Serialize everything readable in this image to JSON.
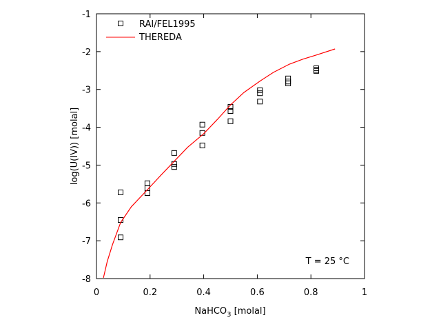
{
  "chart_data": {
    "type": "scatter",
    "xlabel": "NaHCO",
    "xlabel_sub": "3",
    "xlabel_unit": " [molal]",
    "ylabel": "log(U(IV)) [molal]",
    "xlim": [
      0,
      1
    ],
    "ylim": [
      -8,
      -1
    ],
    "x_ticks": [
      "0",
      "0.2",
      "0.4",
      "0.6",
      "0.8",
      "1"
    ],
    "y_ticks": [
      "-8",
      "-7",
      "-6",
      "-5",
      "-4",
      "-3",
      "-2",
      "-1"
    ],
    "grid": false,
    "legend_placement": "top-left",
    "annotation": "T = 25 °C",
    "series": [
      {
        "name": "RAI/FEL1995",
        "kind": "scatter",
        "marker": "open-square",
        "color": "#000000",
        "points": [
          [
            0.09,
            -5.72
          ],
          [
            0.09,
            -6.45
          ],
          [
            0.09,
            -6.91
          ],
          [
            0.19,
            -5.48
          ],
          [
            0.19,
            -5.61
          ],
          [
            0.19,
            -5.74
          ],
          [
            0.29,
            -4.68
          ],
          [
            0.29,
            -4.97
          ],
          [
            0.29,
            -5.05
          ],
          [
            0.395,
            -3.93
          ],
          [
            0.395,
            -4.15
          ],
          [
            0.395,
            -4.48
          ],
          [
            0.5,
            -3.46
          ],
          [
            0.5,
            -3.57
          ],
          [
            0.5,
            -3.84
          ],
          [
            0.61,
            -3.02
          ],
          [
            0.61,
            -3.1
          ],
          [
            0.61,
            -3.32
          ],
          [
            0.715,
            -2.71
          ],
          [
            0.715,
            -2.79
          ],
          [
            0.715,
            -2.84
          ],
          [
            0.82,
            -2.44
          ],
          [
            0.82,
            -2.48
          ],
          [
            0.82,
            -2.51
          ]
        ]
      },
      {
        "name": "THEREDA",
        "kind": "line",
        "color": "#ff0000",
        "points": [
          [
            0.026,
            -7.98
          ],
          [
            0.04,
            -7.55
          ],
          [
            0.06,
            -7.1
          ],
          [
            0.09,
            -6.52
          ],
          [
            0.13,
            -6.1
          ],
          [
            0.19,
            -5.65
          ],
          [
            0.24,
            -5.27
          ],
          [
            0.29,
            -4.9
          ],
          [
            0.34,
            -4.53
          ],
          [
            0.4,
            -4.17
          ],
          [
            0.45,
            -3.8
          ],
          [
            0.5,
            -3.41
          ],
          [
            0.55,
            -3.08
          ],
          [
            0.61,
            -2.78
          ],
          [
            0.66,
            -2.55
          ],
          [
            0.72,
            -2.33
          ],
          [
            0.77,
            -2.2
          ],
          [
            0.82,
            -2.09
          ],
          [
            0.89,
            -1.93
          ]
        ]
      }
    ]
  }
}
